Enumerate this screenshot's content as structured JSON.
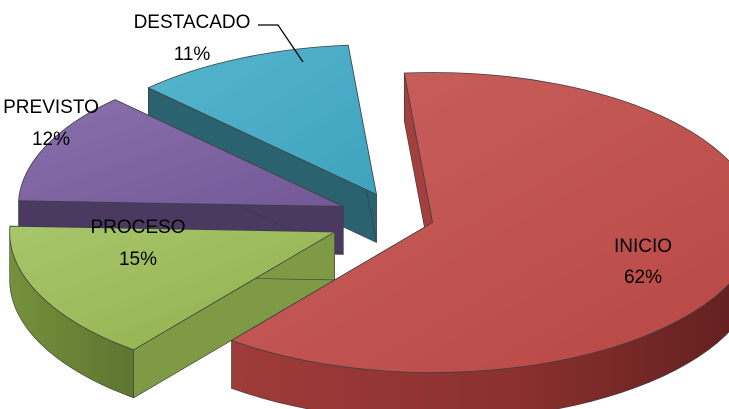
{
  "chart_data": {
    "type": "pie",
    "title": "",
    "categories": [
      "INICIO",
      "PROCESO",
      "PREVISTO",
      "DESTACADO"
    ],
    "values": [
      62,
      15,
      12,
      11
    ],
    "value_labels": [
      "62%",
      "15%",
      "12%",
      "11%"
    ],
    "exploded": true,
    "three_d": true,
    "legend": "none",
    "colors": [
      "#c0504d",
      "#9bbb59",
      "#8064a2",
      "#4bacc6"
    ]
  }
}
